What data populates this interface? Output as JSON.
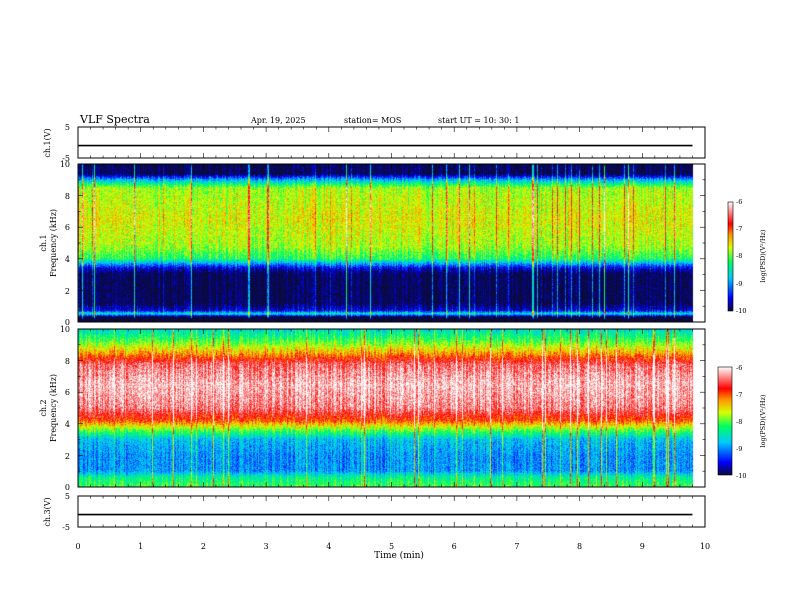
{
  "header": {
    "title": "VLF Spectra",
    "date": "Apr. 19, 2025",
    "station": "station= MOS",
    "start": "start  UT =   10: 30: 1"
  },
  "colors": {
    "spectrum": [
      "#0a0a3c",
      "#0000ff",
      "#00c8ff",
      "#00ff60",
      "#d8ff00",
      "#ff9000",
      "#ff0000",
      "#ff8080",
      "#ffffff"
    ]
  },
  "chart_data": [
    {
      "id": "ch1-waveform",
      "type": "line",
      "ylabel": "ch.1(V)",
      "ylim": [
        -5,
        5
      ],
      "yticks": [
        "5",
        "-5"
      ],
      "xlim": [
        0,
        10
      ],
      "baseline": -1
    },
    {
      "id": "ch1-spectrogram",
      "type": "heatmap",
      "ylabel_top": "ch.1",
      "ylabel": "Frequency (kHz)",
      "ylim": [
        0,
        10
      ],
      "yticks": [
        "0",
        "2",
        "4",
        "6",
        "8",
        "10"
      ],
      "xlim": [
        0,
        10
      ],
      "colorbar": {
        "label": "log(PSD)(V²/Hz)",
        "range": [
          -10,
          -6
        ],
        "ticks": [
          "-6",
          "-7",
          "-8",
          "-9",
          "-10"
        ]
      },
      "profile_log_psd": [
        [
          0.3,
          -10
        ],
        [
          0.5,
          -8.5
        ],
        [
          0.7,
          -9.6
        ],
        [
          1.2,
          -10
        ],
        [
          3.0,
          -10
        ],
        [
          3.4,
          -9.6
        ],
        [
          4.0,
          -8.2
        ],
        [
          4.8,
          -7.8
        ],
        [
          6.5,
          -7.6
        ],
        [
          8.5,
          -7.8
        ],
        [
          9.0,
          -8.8
        ],
        [
          9.4,
          -10
        ],
        [
          10,
          -10
        ]
      ]
    },
    {
      "id": "ch2-spectrogram",
      "type": "heatmap",
      "ylabel_top": "ch.2",
      "ylabel": "Frequency (kHz)",
      "ylim": [
        0,
        10
      ],
      "yticks": [
        "0",
        "2",
        "4",
        "6",
        "8",
        "10"
      ],
      "xlim": [
        0,
        10
      ],
      "colorbar": {
        "label": "log(PSD)(V²/Hz)",
        "range": [
          -10,
          -6
        ],
        "ticks": [
          "-6",
          "-7",
          "-8",
          "-9",
          "-10"
        ]
      },
      "profile_log_psd": [
        [
          0.2,
          -8.2
        ],
        [
          0.6,
          -8.4
        ],
        [
          1.0,
          -9.0
        ],
        [
          2.0,
          -9.0
        ],
        [
          3.0,
          -8.8
        ],
        [
          3.6,
          -8.0
        ],
        [
          4.2,
          -7.0
        ],
        [
          5.0,
          -6.4
        ],
        [
          6.5,
          -6.2
        ],
        [
          7.8,
          -6.5
        ],
        [
          8.4,
          -7.2
        ],
        [
          9.2,
          -8.0
        ],
        [
          10,
          -8.6
        ]
      ]
    },
    {
      "id": "ch3-waveform",
      "type": "line",
      "ylabel": "ch.3(V)",
      "ylim": [
        -5,
        5
      ],
      "yticks": [
        "5",
        "-5"
      ],
      "xlim": [
        0,
        10
      ],
      "baseline": -1
    }
  ],
  "time_axis": {
    "label": "Time (min)",
    "ticks": [
      "0",
      "1",
      "2",
      "3",
      "4",
      "5",
      "6",
      "7",
      "8",
      "9",
      "10"
    ],
    "data_end": 9.8
  }
}
